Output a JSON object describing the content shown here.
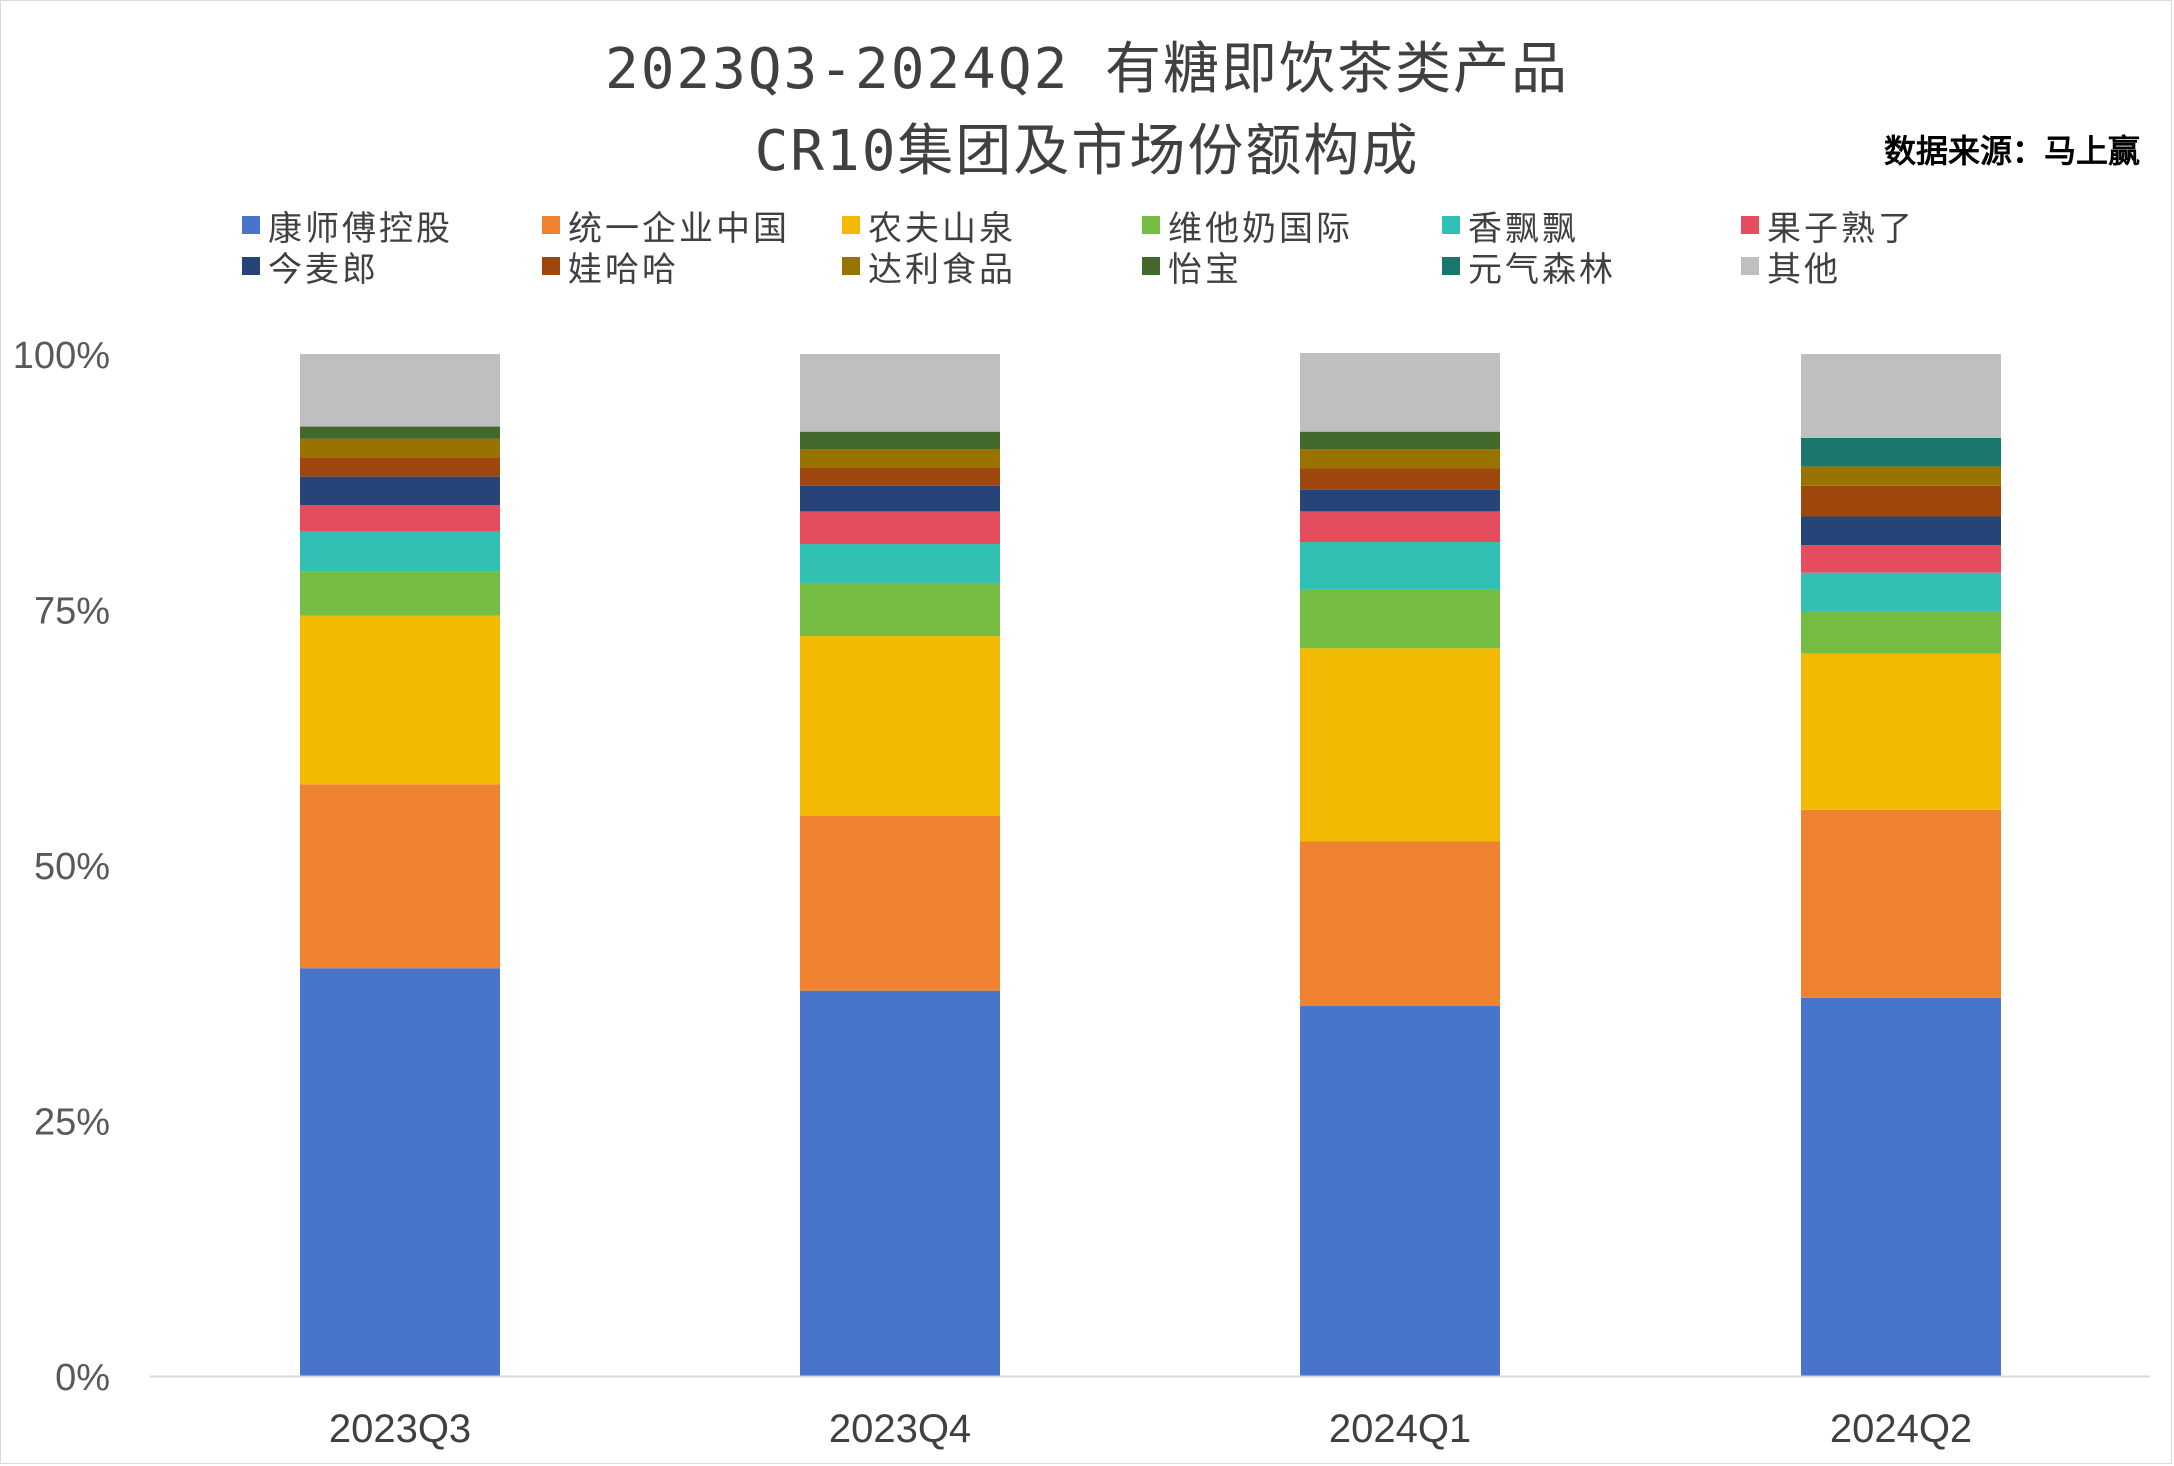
{
  "chart_data": {
    "type": "bar",
    "stacked": true,
    "percent": true,
    "title": "2023Q3-2024Q2 有糖即饮茶类产品",
    "subtitle": "CR10集团及市场份额构成",
    "source": "数据来源：马上赢",
    "categories": [
      "2023Q3",
      "2023Q4",
      "2024Q1",
      "2024Q2"
    ],
    "y_ticks": [
      "0%",
      "25%",
      "50%",
      "75%",
      "100%"
    ],
    "ylim": [
      0,
      100
    ],
    "legend_position": "top",
    "series": [
      {
        "name": "康师傅控股",
        "color": "#4874CB",
        "values": [
          39.9,
          37.7,
          36.2,
          37.0
        ]
      },
      {
        "name": "统一企业中国",
        "color": "#EE822F",
        "values": [
          18.0,
          17.1,
          16.1,
          18.4
        ]
      },
      {
        "name": "农夫山泉",
        "color": "#F2BA02",
        "values": [
          16.5,
          17.6,
          18.9,
          15.3
        ]
      },
      {
        "name": "维他奶国际",
        "color": "#75BD42",
        "values": [
          4.3,
          5.2,
          5.8,
          4.1
        ]
      },
      {
        "name": "香飘飘",
        "color": "#30C0B4",
        "values": [
          3.9,
          3.8,
          4.6,
          3.8
        ]
      },
      {
        "name": "果子熟了",
        "color": "#E54C5E",
        "values": [
          2.6,
          3.2,
          3.0,
          2.7
        ]
      },
      {
        "name": "今麦郎",
        "color": "#264478",
        "values": [
          2.8,
          2.5,
          2.1,
          2.8
        ]
      },
      {
        "name": "娃哈哈",
        "color": "#9E480E",
        "values": [
          1.9,
          1.8,
          2.1,
          3.0
        ]
      },
      {
        "name": "达利食品",
        "color": "#997300",
        "values": [
          1.8,
          1.8,
          1.9,
          1.9
        ]
      },
      {
        "name": "怡宝",
        "color": "#43682B",
        "values": [
          1.2,
          1.7,
          1.7,
          0.0
        ]
      },
      {
        "name": "元气森林",
        "color": "#1B766D",
        "values": [
          0.0,
          0.0,
          0.0,
          2.8
        ]
      },
      {
        "name": "其他",
        "color": "#BFBFBF",
        "values": [
          7.1,
          7.6,
          7.7,
          8.2
        ]
      }
    ]
  }
}
